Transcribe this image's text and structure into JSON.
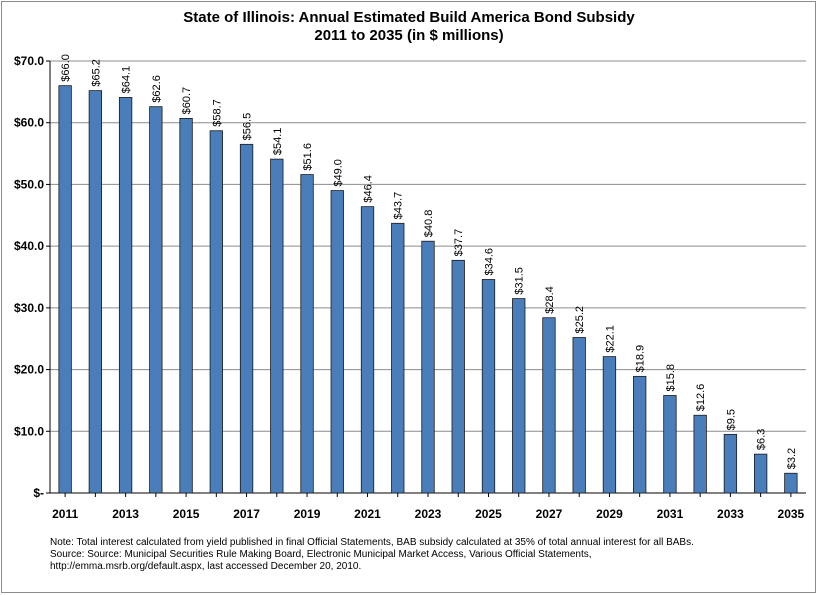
{
  "chart_data": {
    "type": "bar",
    "title": "State of Illinois: Annual Estimated Build America Bond Subsidy",
    "subtitle": "2011 to 2035 (in $ millions)",
    "xlabel": "",
    "ylabel": "",
    "categories": [
      "2011",
      "2012",
      "2013",
      "2014",
      "2015",
      "2016",
      "2017",
      "2018",
      "2019",
      "2020",
      "2021",
      "2022",
      "2023",
      "2024",
      "2025",
      "2026",
      "2027",
      "2028",
      "2029",
      "2030",
      "2031",
      "2032",
      "2033",
      "2034",
      "2035"
    ],
    "x_tick_labels": [
      "2011",
      "2013",
      "2015",
      "2017",
      "2019",
      "2021",
      "2023",
      "2025",
      "2027",
      "2029",
      "2031",
      "2033",
      "2035"
    ],
    "values": [
      66.0,
      65.2,
      64.1,
      62.6,
      60.7,
      58.7,
      56.5,
      54.1,
      51.6,
      49.0,
      46.4,
      43.7,
      40.8,
      37.7,
      34.6,
      31.5,
      28.4,
      25.2,
      22.1,
      18.9,
      15.8,
      12.6,
      9.5,
      6.3,
      3.2
    ],
    "value_labels": [
      "$66.0",
      "$65.2",
      "$64.1",
      "$62.6",
      "$60.7",
      "$58.7",
      "$56.5",
      "$54.1",
      "$51.6",
      "$49.0",
      "$46.4",
      "$43.7",
      "$40.8",
      "$37.7",
      "$34.6",
      "$31.5",
      "$28.4",
      "$25.2",
      "$22.1",
      "$18.9",
      "$15.8",
      "$12.6",
      "$9.5",
      "$6.3",
      "$3.2"
    ],
    "y_ticks": [
      0,
      10,
      20,
      30,
      40,
      50,
      60,
      70
    ],
    "y_tick_labels": [
      "$-",
      "$10.0",
      "$20.0",
      "$30.0",
      "$40.0",
      "$50.0",
      "$60.0",
      "$70.0"
    ],
    "ylim": [
      0,
      70
    ],
    "grid": true,
    "legend": "none",
    "bar_color": "#4a7ebb",
    "bar_edge_color": "#1a1a1a"
  },
  "note": {
    "line1": "Note: Total interest calculated from yield published in final Official Statements, BAB subsidy calculated at 35% of total annual interest for all BABs.",
    "line2": "Source: Source: Municipal Securities Rule Making Board, Electronic Municipal Market Access, Various Official Statements,",
    "line3": "http://emma.msrb.org/default.aspx, last accessed December 20, 2010."
  }
}
